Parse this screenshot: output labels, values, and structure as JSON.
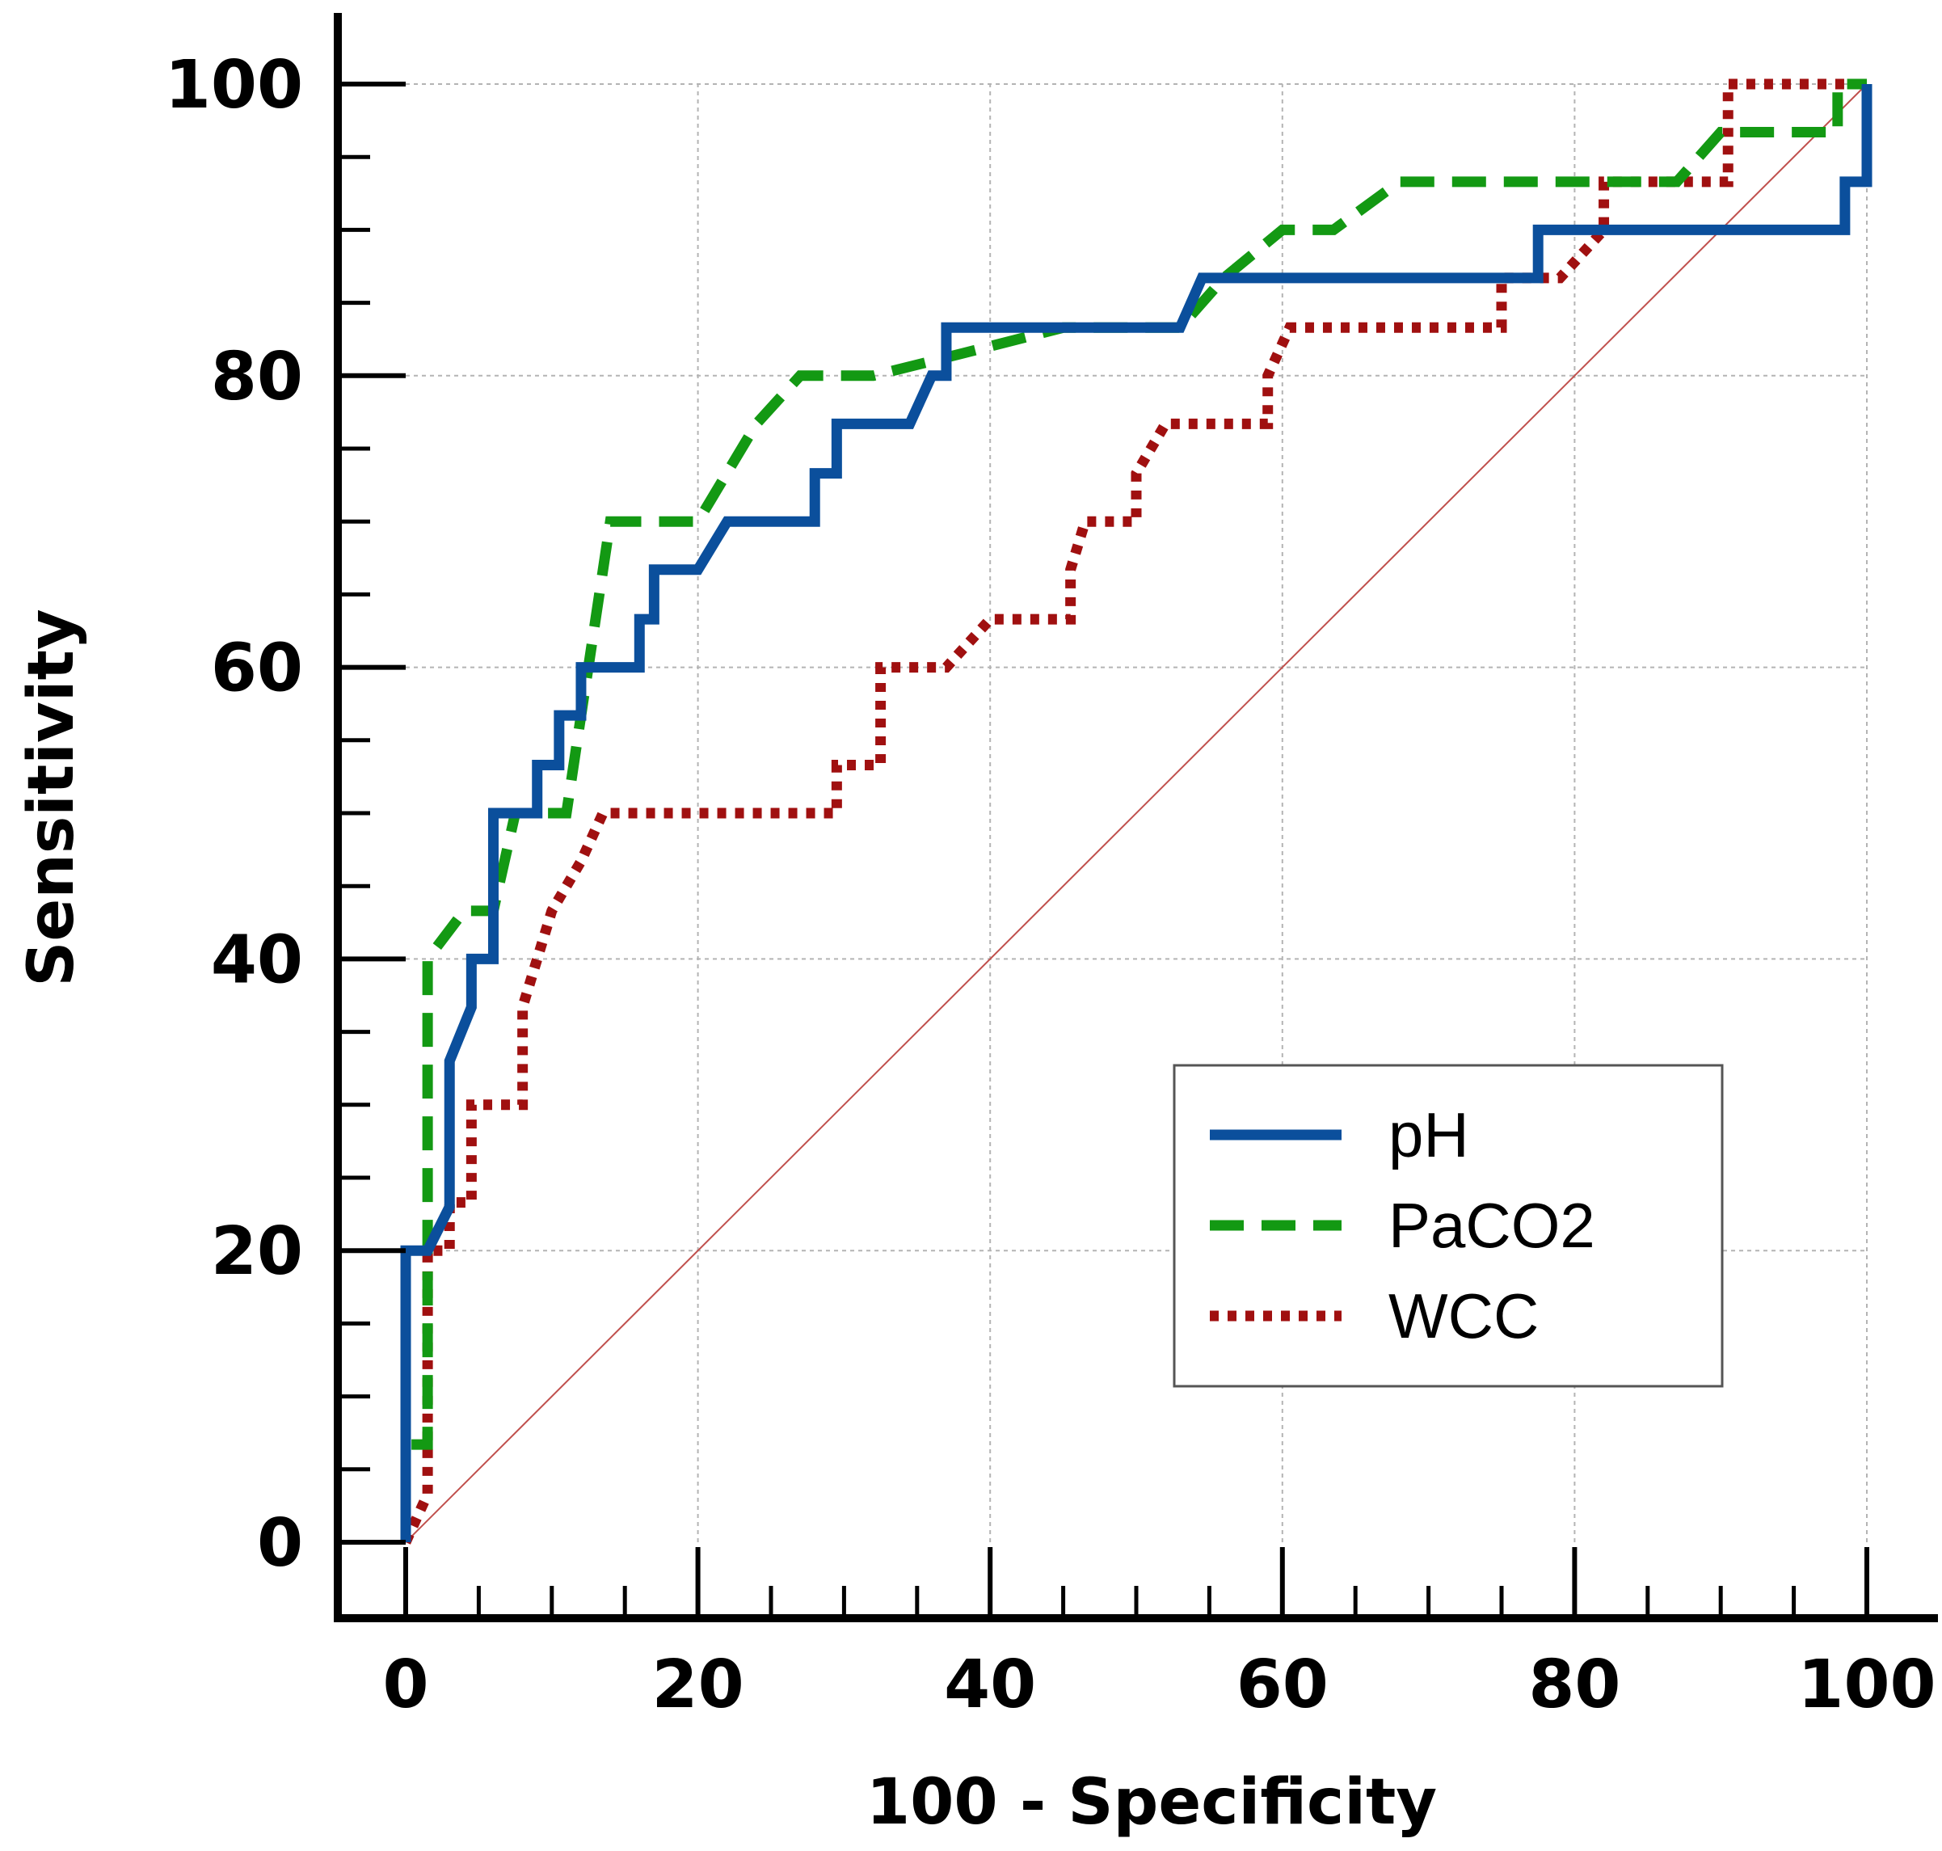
{
  "chart_data": {
    "type": "line",
    "title": "",
    "xlabel": "100 - Specificity",
    "ylabel": "Sensitivity",
    "xlim": [
      0,
      100
    ],
    "ylim": [
      0,
      100
    ],
    "x_ticks": [
      "0",
      "20",
      "40",
      "60",
      "80",
      "100"
    ],
    "y_ticks": [
      "0",
      "20",
      "40",
      "60",
      "80",
      "100"
    ],
    "grid": true,
    "legend_position": "lower-right",
    "reference_line": {
      "x": [
        0,
        100
      ],
      "y": [
        0,
        100
      ],
      "color": "#c0504d"
    },
    "series": [
      {
        "name": "pH",
        "color": "#0b4f9c",
        "style": "solid",
        "points": [
          [
            0,
            0
          ],
          [
            0,
            20
          ],
          [
            1.5,
            20
          ],
          [
            3,
            23
          ],
          [
            3,
            33
          ],
          [
            4.5,
            36.7
          ],
          [
            4.5,
            40
          ],
          [
            6,
            40
          ],
          [
            6,
            50
          ],
          [
            9,
            50
          ],
          [
            9,
            53.3
          ],
          [
            10.5,
            53.3
          ],
          [
            10.5,
            56.7
          ],
          [
            12,
            56.7
          ],
          [
            12,
            60
          ],
          [
            16,
            60
          ],
          [
            16,
            63.3
          ],
          [
            17,
            63.3
          ],
          [
            17,
            66.7
          ],
          [
            20,
            66.7
          ],
          [
            22,
            70
          ],
          [
            28,
            70
          ],
          [
            28,
            73.3
          ],
          [
            29.5,
            73.3
          ],
          [
            29.5,
            76.7
          ],
          [
            34.5,
            76.7
          ],
          [
            36,
            80
          ],
          [
            37,
            80
          ],
          [
            37,
            83.3
          ],
          [
            53,
            83.3
          ],
          [
            54.5,
            86.7
          ],
          [
            77.5,
            86.7
          ],
          [
            77.5,
            90
          ],
          [
            98.5,
            90
          ],
          [
            98.5,
            93.3
          ],
          [
            100,
            93.3
          ],
          [
            100,
            100
          ]
        ]
      },
      {
        "name": "PaCO2",
        "color": "#139913",
        "style": "dashed",
        "points": [
          [
            0,
            0
          ],
          [
            0,
            6.7
          ],
          [
            1.5,
            6.7
          ],
          [
            1.5,
            40
          ],
          [
            4,
            43.3
          ],
          [
            6,
            43.3
          ],
          [
            7.5,
            50
          ],
          [
            11,
            50
          ],
          [
            12,
            56.7
          ],
          [
            12.5,
            60
          ],
          [
            14,
            70
          ],
          [
            20,
            70
          ],
          [
            24,
            76.7
          ],
          [
            27,
            80
          ],
          [
            32,
            80
          ],
          [
            38,
            81.5
          ],
          [
            45,
            83.3
          ],
          [
            53,
            83.3
          ],
          [
            56,
            86.7
          ],
          [
            60,
            90
          ],
          [
            63.5,
            90
          ],
          [
            68,
            93.3
          ],
          [
            87,
            93.3
          ],
          [
            90,
            96.7
          ],
          [
            98,
            96.7
          ],
          [
            98,
            100
          ],
          [
            100,
            100
          ]
        ]
      },
      {
        "name": "WCC",
        "color": "#a01010",
        "style": "dotted",
        "points": [
          [
            0,
            0
          ],
          [
            1.5,
            3.3
          ],
          [
            1.5,
            20
          ],
          [
            3,
            20
          ],
          [
            3,
            23.3
          ],
          [
            4.5,
            23.3
          ],
          [
            4.5,
            30
          ],
          [
            8,
            30
          ],
          [
            8,
            36.7
          ],
          [
            9,
            40
          ],
          [
            10,
            43.3
          ],
          [
            12,
            46.7
          ],
          [
            13.5,
            50
          ],
          [
            29.5,
            50
          ],
          [
            29.5,
            53.3
          ],
          [
            32.5,
            53.3
          ],
          [
            32.5,
            60
          ],
          [
            37,
            60
          ],
          [
            40,
            63.3
          ],
          [
            45.5,
            63.3
          ],
          [
            45.5,
            66.7
          ],
          [
            46.5,
            70
          ],
          [
            50,
            70
          ],
          [
            50,
            73.3
          ],
          [
            52,
            76.7
          ],
          [
            59,
            76.7
          ],
          [
            59,
            80
          ],
          [
            60.5,
            83.3
          ],
          [
            75,
            83.3
          ],
          [
            75,
            86.7
          ],
          [
            79,
            86.7
          ],
          [
            82,
            90
          ],
          [
            82,
            93.3
          ],
          [
            90.5,
            93.3
          ],
          [
            90.5,
            100
          ],
          [
            100,
            100
          ]
        ]
      }
    ]
  }
}
